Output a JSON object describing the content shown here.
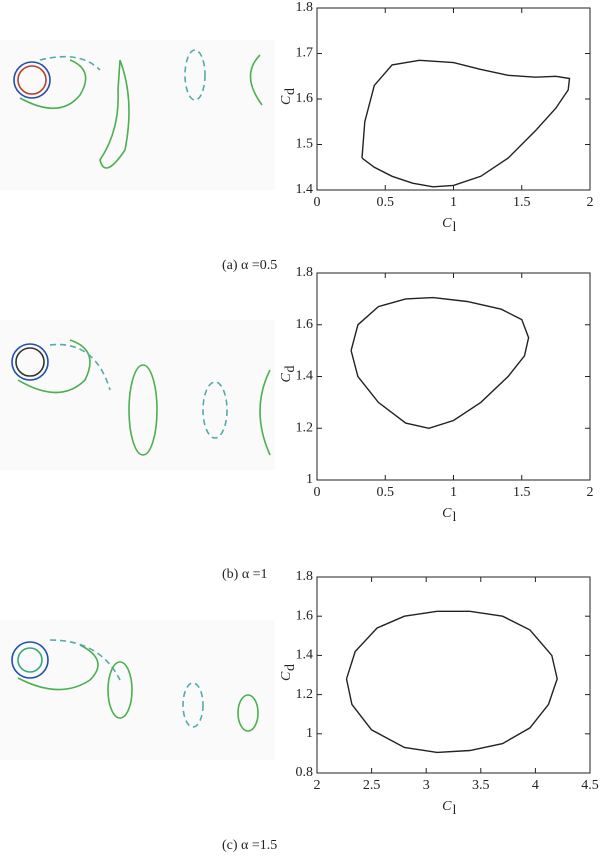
{
  "chart_data": [
    {
      "type": "line",
      "caption": "(a) α =0.5",
      "xlabel": "C",
      "xlabel_sub": "l",
      "ylabel": "C",
      "ylabel_sub": "d",
      "color": "#222222",
      "xlim": [
        0,
        2
      ],
      "ylim": [
        1.4,
        1.8
      ],
      "xticks": [
        0,
        0.5,
        1,
        1.5,
        2
      ],
      "yticks": [
        1.4,
        1.5,
        1.6,
        1.7,
        1.8
      ],
      "x": [
        0.33,
        0.35,
        0.42,
        0.55,
        0.75,
        1.0,
        1.2,
        1.4,
        1.6,
        1.75,
        1.85,
        1.84,
        1.75,
        1.6,
        1.4,
        1.2,
        1.0,
        0.85,
        0.7,
        0.55,
        0.42,
        0.33
      ],
      "values": [
        1.47,
        1.55,
        1.63,
        1.675,
        1.685,
        1.68,
        1.665,
        1.652,
        1.648,
        1.65,
        1.645,
        1.62,
        1.58,
        1.53,
        1.47,
        1.43,
        1.41,
        1.407,
        1.415,
        1.43,
        1.45,
        1.47
      ]
    },
    {
      "type": "line",
      "caption": "(b) α =1",
      "xlabel": "C",
      "xlabel_sub": "l",
      "ylabel": "C",
      "ylabel_sub": "d",
      "color": "#222222",
      "xlim": [
        0,
        2
      ],
      "ylim": [
        1,
        1.8
      ],
      "xticks": [
        0,
        0.5,
        1,
        1.5,
        2
      ],
      "yticks": [
        1,
        1.2,
        1.4,
        1.6,
        1.8
      ],
      "x": [
        0.25,
        0.3,
        0.45,
        0.65,
        0.85,
        1.1,
        1.35,
        1.5,
        1.55,
        1.52,
        1.4,
        1.2,
        1.0,
        0.82,
        0.65,
        0.45,
        0.3,
        0.25
      ],
      "values": [
        1.5,
        1.6,
        1.67,
        1.7,
        1.705,
        1.69,
        1.66,
        1.62,
        1.55,
        1.48,
        1.4,
        1.3,
        1.23,
        1.2,
        1.22,
        1.3,
        1.4,
        1.5
      ]
    },
    {
      "type": "line",
      "caption": "(c) α =1.5",
      "xlabel": "C",
      "xlabel_sub": "l",
      "ylabel": "C",
      "ylabel_sub": "d",
      "color": "#222222",
      "xlim": [
        2,
        4.5
      ],
      "ylim": [
        0.8,
        1.8
      ],
      "xticks": [
        2,
        2.5,
        3,
        3.5,
        4,
        4.5
      ],
      "yticks": [
        0.8,
        1,
        1.2,
        1.4,
        1.6,
        1.8
      ],
      "x": [
        2.27,
        2.35,
        2.55,
        2.8,
        3.1,
        3.4,
        3.7,
        3.95,
        4.15,
        4.2,
        4.12,
        3.95,
        3.7,
        3.4,
        3.1,
        2.8,
        2.5,
        2.32,
        2.27
      ],
      "values": [
        1.28,
        1.42,
        1.54,
        1.6,
        1.625,
        1.625,
        1.6,
        1.53,
        1.4,
        1.28,
        1.15,
        1.03,
        0.95,
        0.915,
        0.905,
        0.93,
        1.02,
        1.15,
        1.28
      ]
    }
  ]
}
